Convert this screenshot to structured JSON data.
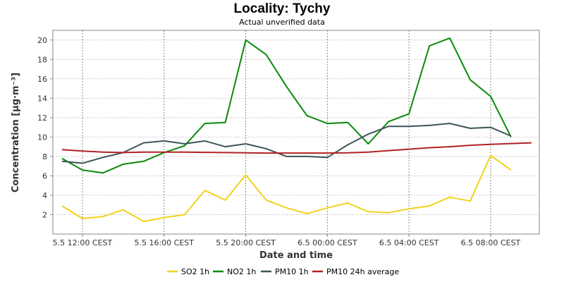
{
  "chart_data": {
    "type": "line",
    "title": "Locality: Tychy",
    "subtitle": "Actual unverified data",
    "xlabel": "Date and time",
    "ylabel": "Concentration [µg·m⁻³]",
    "ylim": [
      0,
      21
    ],
    "yticks": [
      2,
      4,
      6,
      8,
      10,
      12,
      14,
      16,
      18,
      20
    ],
    "grid": true,
    "legend_position": "bottom",
    "x_labeled_ticks": [
      "5.5 12:00 CEST",
      "5.5 16:00 CEST",
      "5.5 20:00 CEST",
      "6.5 00:00 CEST",
      "6.5 04:00 CEST",
      "6.5 08:00 CEST"
    ],
    "x": [
      "5.5 11:00",
      "5.5 12:00",
      "5.5 13:00",
      "5.5 14:00",
      "5.5 15:00",
      "5.5 16:00",
      "5.5 17:00",
      "5.5 18:00",
      "5.5 19:00",
      "5.5 20:00",
      "5.5 21:00",
      "5.5 22:00",
      "5.5 23:00",
      "6.5 00:00",
      "6.5 01:00",
      "6.5 02:00",
      "6.5 03:00",
      "6.5 04:00",
      "6.5 05:00",
      "6.5 06:00",
      "6.5 07:00",
      "6.5 08:00",
      "6.5 09:00",
      "6.5 10:00"
    ],
    "series": [
      {
        "name": "SO2 1h",
        "color": "#f2d21b",
        "values": [
          2.9,
          1.6,
          1.8,
          2.5,
          1.3,
          1.7,
          2.0,
          4.5,
          3.5,
          6.1,
          3.5,
          2.7,
          2.1,
          2.7,
          3.2,
          2.3,
          2.2,
          2.6,
          2.9,
          3.8,
          3.4,
          8.1,
          6.6,
          null
        ]
      },
      {
        "name": "NO2 1h",
        "color": "#0a8a0a",
        "values": [
          7.8,
          6.6,
          6.3,
          7.2,
          7.5,
          8.4,
          9.1,
          11.4,
          11.5,
          20.0,
          18.5,
          15.2,
          12.2,
          11.4,
          11.5,
          9.3,
          11.6,
          12.4,
          19.4,
          20.2,
          15.9,
          14.2,
          10.0,
          null
        ]
      },
      {
        "name": "PM10 1h",
        "color": "#3d5559",
        "values": [
          7.5,
          7.3,
          7.9,
          8.4,
          9.4,
          9.6,
          9.3,
          9.6,
          9.0,
          9.3,
          8.8,
          8.0,
          8.0,
          7.9,
          9.2,
          10.3,
          11.1,
          11.1,
          11.2,
          11.4,
          10.9,
          11.0,
          10.1,
          null
        ]
      },
      {
        "name": "PM10 24h average",
        "color": "#b22222",
        "values": [
          8.7,
          8.55,
          8.45,
          8.4,
          8.45,
          8.45,
          8.45,
          8.42,
          8.4,
          8.37,
          8.35,
          8.35,
          8.35,
          8.35,
          8.37,
          8.45,
          8.6,
          8.75,
          8.9,
          9.0,
          9.15,
          9.25,
          9.33,
          9.4
        ]
      }
    ]
  }
}
